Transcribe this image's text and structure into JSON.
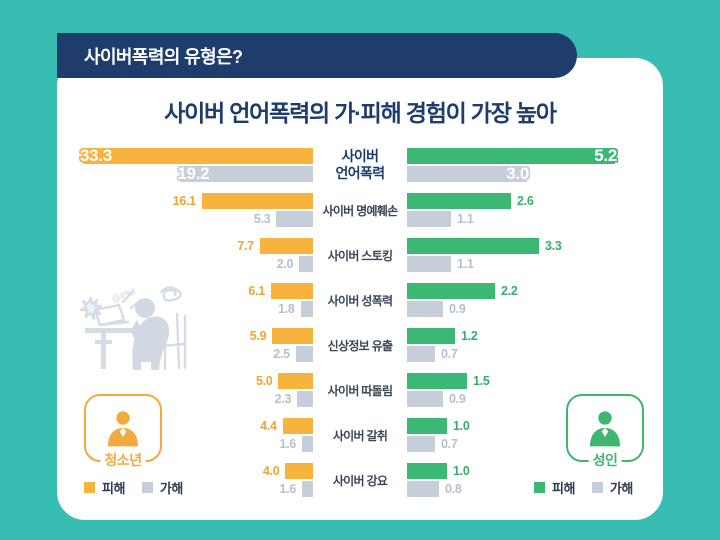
{
  "header": {
    "title": "사이버폭력의 유형은?",
    "bg_color": "#1E3D6D"
  },
  "card": {
    "title": "사이버 언어폭력의 가·피해 경험이 가장 높아"
  },
  "colors": {
    "background_teal": "#38BDB2",
    "navy": "#1E3D6D",
    "youth_yellow": "#F8B23E",
    "adult_green": "#3CB875",
    "gray_bar": "#C6CEDA",
    "white": "#FFFFFF"
  },
  "left_panel": {
    "badge_label": "청소년",
    "legend": [
      {
        "label": "피해",
        "color": "#F8B23E"
      },
      {
        "label": "가해",
        "color": "#C6CEDA"
      }
    ]
  },
  "right_panel": {
    "badge_label": "성인",
    "legend": [
      {
        "label": "피해",
        "color": "#3CB875"
      },
      {
        "label": "가해",
        "color": "#C6CEDA"
      }
    ]
  },
  "chart_data": {
    "type": "bar",
    "layout": "butterfly",
    "title": "사이버 언어폭력의 가·피해 경험이 가장 높아",
    "categories": [
      "사이버 언어폭력",
      "사이버 명예훼손",
      "사이버 스토킹",
      "사이버 성폭력",
      "신상정보 유출",
      "사이버 따돌림",
      "사이버 갈취",
      "사이버 강요"
    ],
    "series": [
      {
        "name": "청소년 피해",
        "side": "left",
        "color": "#F8B23E",
        "label_color": "#F0A52F",
        "values": [
          33.3,
          16.1,
          7.7,
          6.1,
          5.9,
          5.0,
          4.4,
          4.0
        ]
      },
      {
        "name": "청소년 가해",
        "side": "left",
        "color": "#C6CEDA",
        "label_color": "#B5BFCE",
        "values": [
          19.2,
          5.3,
          2.0,
          1.8,
          2.5,
          2.3,
          1.6,
          1.6
        ]
      },
      {
        "name": "성인 피해",
        "side": "right",
        "color": "#3CB875",
        "label_color": "#38AD6C",
        "values": [
          5.2,
          2.6,
          3.3,
          2.2,
          1.2,
          1.5,
          1.0,
          1.0
        ]
      },
      {
        "name": "성인 가해",
        "side": "right",
        "color": "#C6CEDA",
        "label_color": "#B5BFCE",
        "values": [
          3.0,
          1.1,
          1.1,
          0.9,
          0.7,
          0.9,
          0.7,
          0.8
        ]
      }
    ],
    "axis": {
      "left_max": 33.3,
      "right_max": 5.2,
      "grid": false,
      "value_labels": true
    }
  }
}
